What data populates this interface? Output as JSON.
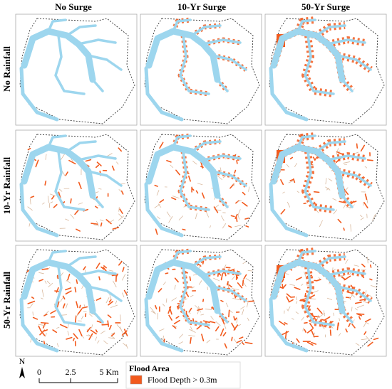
{
  "columns": [
    "No Surge",
    "10-Yr Surge",
    "50-Yr Surge"
  ],
  "rows": [
    "No Rainfall",
    "10-Yr Rainfall",
    "50-Yr Rainfall"
  ],
  "scale_bar": {
    "north": "N",
    "labels": [
      "0",
      "2.5",
      "5 Km"
    ]
  },
  "legend": {
    "title": "Flood Area",
    "items": [
      "Flood Depth > 0.3m"
    ]
  }
}
